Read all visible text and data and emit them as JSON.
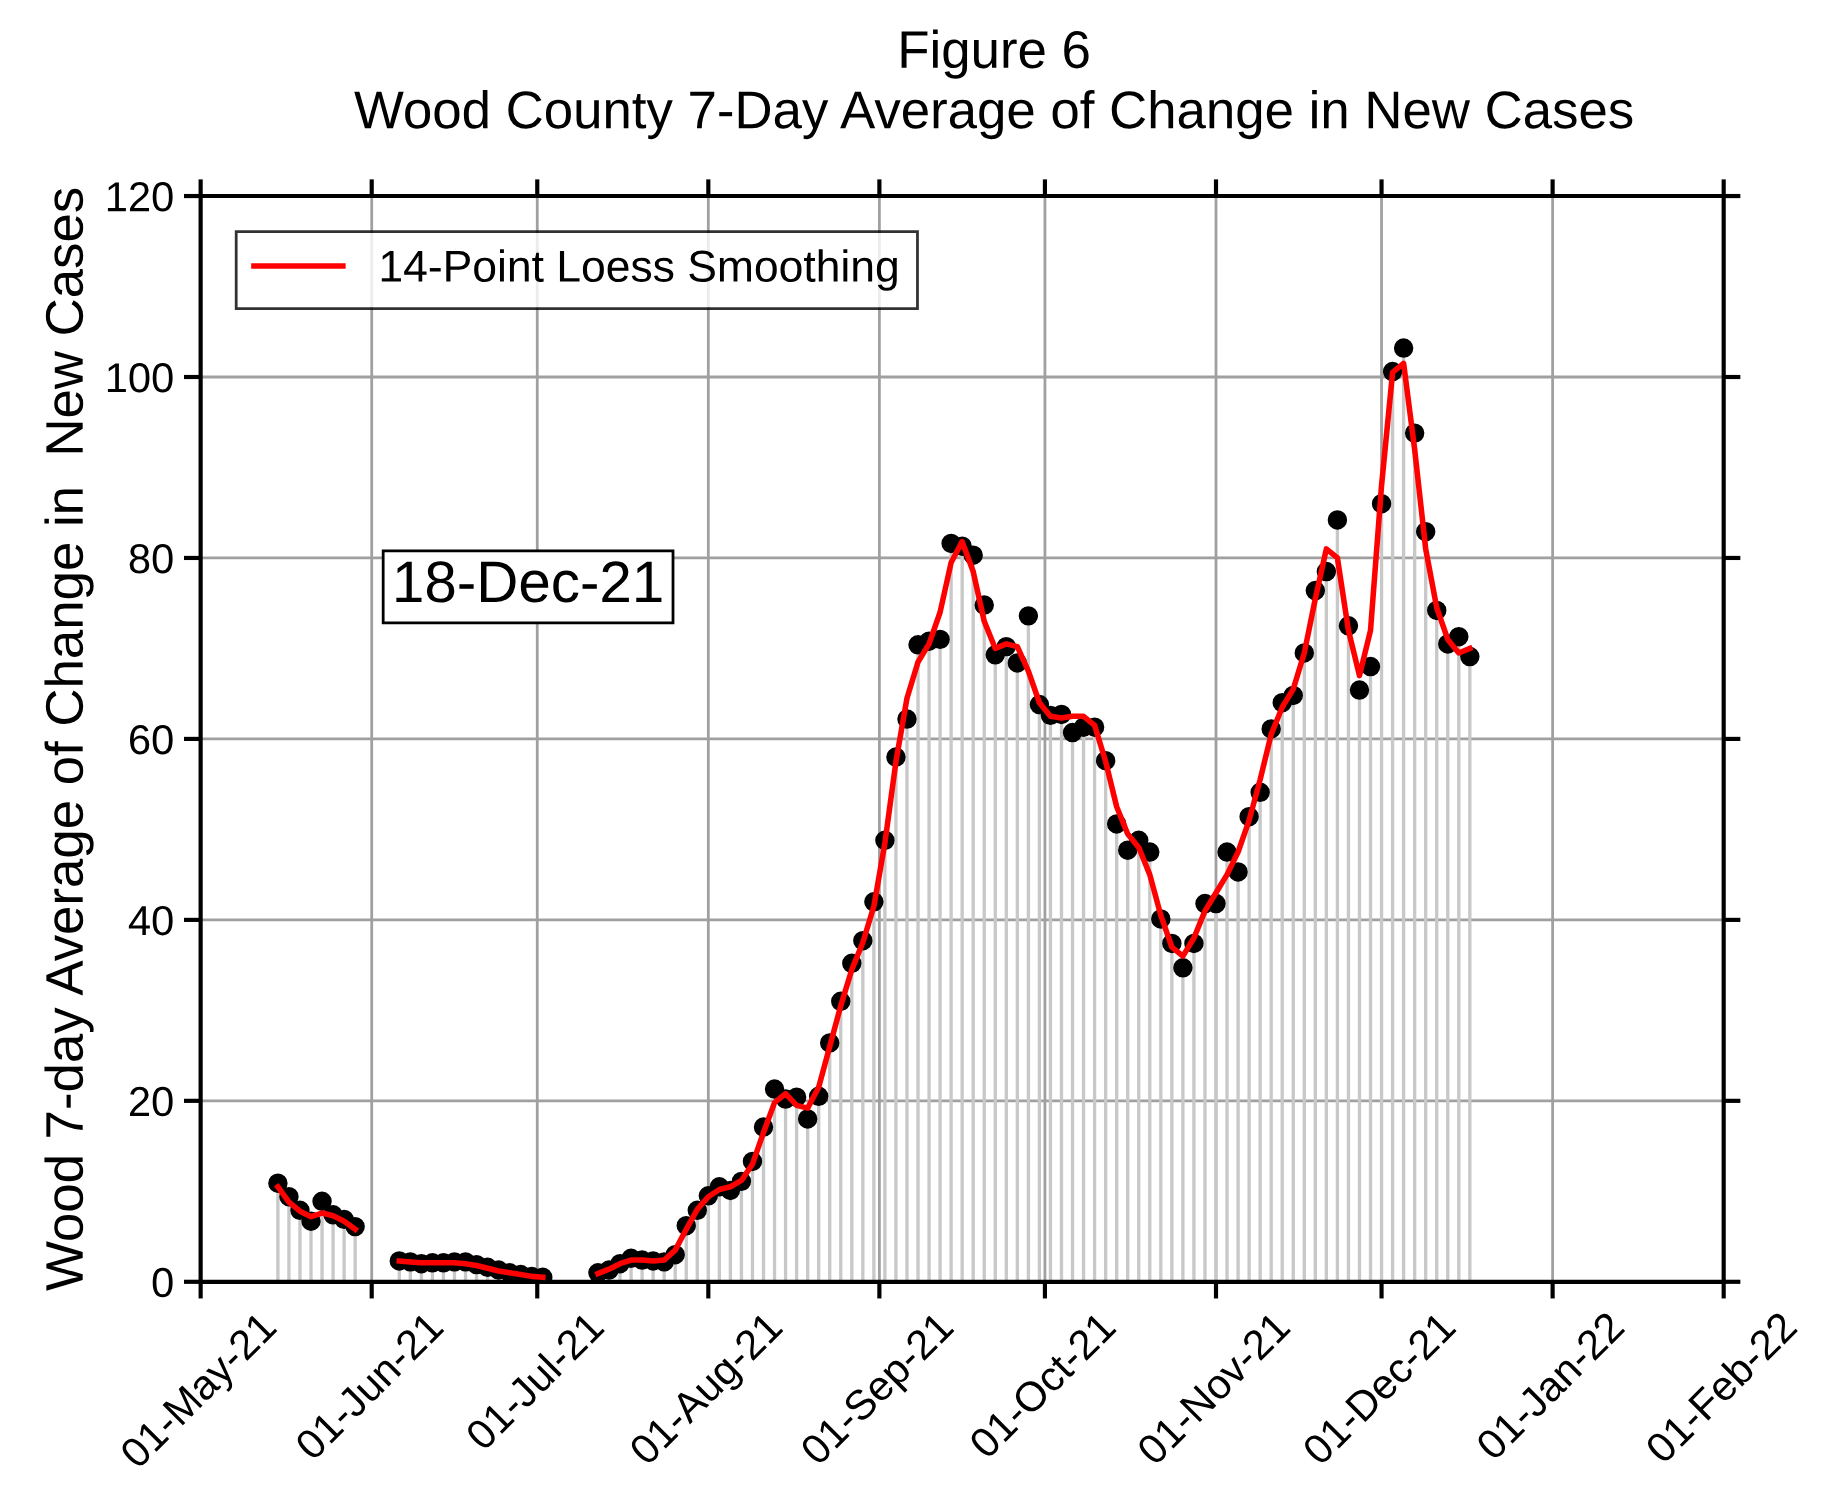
{
  "chart_data": {
    "type": "line",
    "title": "Figure 6",
    "subtitle": "Wood County 7-Day Average of Change in New Cases",
    "ylabel": "Wood 7-day Average of Change in  New Cases",
    "x": [
      "2021-05-15",
      "2021-05-17",
      "2021-05-19",
      "2021-05-21",
      "2021-05-23",
      "2021-05-25",
      "2021-05-27",
      "2021-05-29",
      "2021-06-01",
      "2021-06-06",
      "2021-06-08",
      "2021-06-10",
      "2021-06-12",
      "2021-06-14",
      "2021-06-16",
      "2021-06-18",
      "2021-06-20",
      "2021-06-22",
      "2021-06-24",
      "2021-06-26",
      "2021-06-28",
      "2021-06-30",
      "2021-07-02",
      "2021-07-07",
      "2021-07-12",
      "2021-07-14",
      "2021-07-16",
      "2021-07-18",
      "2021-07-20",
      "2021-07-22",
      "2021-07-24",
      "2021-07-26",
      "2021-07-28",
      "2021-07-30",
      "2021-08-01",
      "2021-08-03",
      "2021-08-05",
      "2021-08-07",
      "2021-08-09",
      "2021-08-11",
      "2021-08-13",
      "2021-08-15",
      "2021-08-17",
      "2021-08-19",
      "2021-08-21",
      "2021-08-23",
      "2021-08-25",
      "2021-08-27",
      "2021-08-29",
      "2021-08-31",
      "2021-09-02",
      "2021-09-04",
      "2021-09-06",
      "2021-09-08",
      "2021-09-10",
      "2021-09-12",
      "2021-09-14",
      "2021-09-16",
      "2021-09-18",
      "2021-09-20",
      "2021-09-22",
      "2021-09-24",
      "2021-09-26",
      "2021-09-28",
      "2021-09-30",
      "2021-10-02",
      "2021-10-04",
      "2021-10-06",
      "2021-10-08",
      "2021-10-10",
      "2021-10-12",
      "2021-10-14",
      "2021-10-16",
      "2021-10-18",
      "2021-10-20",
      "2021-10-22",
      "2021-10-24",
      "2021-10-26",
      "2021-10-28",
      "2021-10-30",
      "2021-11-01",
      "2021-11-03",
      "2021-11-05",
      "2021-11-07",
      "2021-11-09",
      "2021-11-11",
      "2021-11-13",
      "2021-11-15",
      "2021-11-17",
      "2021-11-19",
      "2021-11-21",
      "2021-11-23",
      "2021-11-25",
      "2021-11-27",
      "2021-11-29",
      "2021-12-01",
      "2021-12-03",
      "2021-12-05",
      "2021-12-07",
      "2021-12-09",
      "2021-12-11",
      "2021-12-13",
      "2021-12-15",
      "2021-12-17"
    ],
    "series": [
      {
        "type": "lollipop",
        "color": "#000000",
        "marker": "circle",
        "values": [
          10.9,
          9.4,
          7.9,
          6.7,
          8.9,
          7.4,
          6.9,
          6.1,
          null,
          2.3,
          2.2,
          2.0,
          2.1,
          2.1,
          2.2,
          2.2,
          1.9,
          1.6,
          1.3,
          1.0,
          0.8,
          0.6,
          0.5,
          null,
          1.0,
          1.3,
          2.0,
          2.6,
          2.4,
          2.3,
          2.2,
          3.0,
          6.2,
          7.9,
          9.5,
          10.5,
          10.1,
          11.1,
          13.3,
          17.1,
          21.3,
          20.2,
          20.4,
          18.0,
          20.5,
          26.4,
          31.0,
          35.2,
          37.7,
          42.0,
          48.8,
          58.0,
          62.2,
          70.4,
          70.8,
          71.0,
          81.6,
          81.3,
          80.3,
          74.8,
          69.3,
          70.2,
          68.4,
          73.6,
          63.8,
          62.6,
          62.7,
          60.7,
          61.3,
          61.3,
          57.6,
          50.6,
          47.7,
          48.8,
          47.5,
          40.1,
          37.4,
          34.7,
          37.4,
          41.8,
          41.8,
          47.5,
          45.3,
          51.4,
          54.1,
          61.1,
          64.0,
          64.8,
          69.5,
          76.4,
          78.5,
          84.2,
          72.5,
          65.4,
          68.0,
          86.0,
          100.6,
          103.2,
          93.8,
          82.9,
          74.2,
          70.5,
          71.3,
          69.1
        ]
      },
      {
        "name": "14-Point Loess Smoothing",
        "color": "#ff0000",
        "values": [
          10.5,
          8.8,
          7.8,
          7.2,
          7.6,
          7.3,
          6.7,
          5.8,
          null,
          2.3,
          2.2,
          2.1,
          2.1,
          2.1,
          2.1,
          2.0,
          1.8,
          1.5,
          1.2,
          1.0,
          0.8,
          0.6,
          0.5,
          null,
          0.9,
          1.4,
          2.0,
          2.4,
          2.4,
          2.3,
          2.4,
          3.5,
          5.8,
          8.0,
          9.4,
          10.2,
          10.5,
          11.2,
          13.0,
          16.5,
          19.8,
          20.8,
          19.5,
          19.2,
          21.5,
          26.0,
          30.5,
          34.5,
          37.5,
          41.5,
          48.5,
          57.5,
          64.5,
          68.5,
          70.5,
          74.0,
          79.5,
          81.8,
          78.5,
          73.0,
          70.0,
          70.5,
          70.2,
          67.5,
          64.0,
          62.5,
          62.3,
          62.5,
          62.5,
          61.5,
          57.5,
          52.5,
          49.5,
          48.0,
          45.0,
          40.5,
          37.0,
          36.0,
          38.0,
          41.0,
          43.0,
          45.0,
          47.5,
          51.0,
          55.5,
          60.5,
          63.5,
          65.5,
          69.5,
          75.5,
          81.0,
          80.0,
          72.0,
          67.0,
          72.0,
          88.0,
          100.5,
          101.5,
          92.0,
          81.0,
          74.5,
          71.0,
          69.5,
          70.0
        ]
      }
    ],
    "xlim": [
      "2021-05-01",
      "2022-02-01"
    ],
    "xticks": [
      {
        "value": "2021-05-01",
        "label": "01-May-21"
      },
      {
        "value": "2021-06-01",
        "label": "01-Jun-21"
      },
      {
        "value": "2021-07-01",
        "label": "01-Jul-21"
      },
      {
        "value": "2021-08-01",
        "label": "01-Aug-21"
      },
      {
        "value": "2021-09-01",
        "label": "01-Sep-21"
      },
      {
        "value": "2021-10-01",
        "label": "01-Oct-21"
      },
      {
        "value": "2021-11-01",
        "label": "01-Nov-21"
      },
      {
        "value": "2021-12-01",
        "label": "01-Dec-21"
      },
      {
        "value": "2022-01-01",
        "label": "01-Jan-22"
      },
      {
        "value": "2022-02-01",
        "label": "01-Feb-22"
      }
    ],
    "ylim": [
      0,
      120
    ],
    "yticks": [
      0,
      20,
      40,
      60,
      80,
      100,
      120
    ],
    "grid": true,
    "legend": "top left",
    "line_style": "solid",
    "annotations": [
      "18-Dec-21"
    ]
  }
}
